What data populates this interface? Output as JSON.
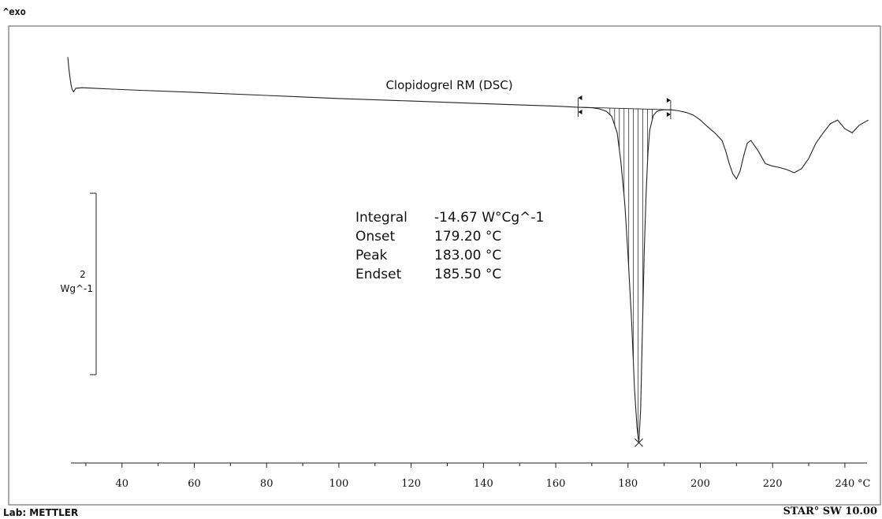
{
  "header": {
    "exo_label": "^exo"
  },
  "footer": {
    "lab_label": "Lab: METTLER",
    "software_label": "STAR° SW 10.00"
  },
  "chart_data": {
    "type": "line",
    "title": "Clopidogrel RM (DSC)",
    "xlabel": "",
    "ylabel": "",
    "x_unit": "°C",
    "xlim": [
      25,
      247
    ],
    "x_ticks": [
      40,
      60,
      80,
      100,
      120,
      140,
      160,
      180,
      200,
      220,
      240
    ],
    "x_tick_labels": [
      "40",
      "60",
      "80",
      "100",
      "120",
      "140",
      "160",
      "180",
      "200",
      "220",
      "240"
    ],
    "scale_bar": {
      "top_label": "2",
      "unit_label": "Wg^-1",
      "value": 2
    },
    "ylim": [
      -7.0,
      0.9
    ],
    "integration": {
      "start": 166.2,
      "end": 191.8
    },
    "annotations": [
      {
        "name": "Integral",
        "value": "-14.67 W°Cg^-1"
      },
      {
        "name": "Onset",
        "value": "179.20 °C"
      },
      {
        "name": "Peak",
        "value": "183.00 °C"
      },
      {
        "name": "Endset",
        "value": "185.50 °C"
      }
    ],
    "series": [
      {
        "x": [
          25.0,
          25.3,
          25.6,
          25.9,
          26.2,
          26.6,
          27.2,
          29.0,
          35,
          45,
          60,
          80,
          100,
          120,
          140,
          160,
          166,
          170,
          172,
          174,
          175.5,
          177,
          178,
          179,
          179.2,
          180,
          181,
          181.8,
          182.5,
          183.0,
          183.5,
          184.0,
          184.5,
          185.0,
          185.5,
          186,
          187,
          188,
          189,
          190,
          191,
          192,
          194,
          196,
          198,
          200,
          202,
          204,
          206,
          207,
          208,
          209,
          210,
          211,
          212,
          213,
          214,
          216,
          218,
          220,
          222,
          224,
          226,
          228,
          230,
          232,
          234,
          236,
          238,
          240,
          242,
          244,
          246.5
        ],
        "y": [
          0.68,
          0.45,
          0.28,
          0.14,
          0.05,
          0.0,
          0.07,
          0.08,
          0.06,
          0.03,
          -0.01,
          -0.07,
          -0.13,
          -0.18,
          -0.23,
          -0.28,
          -0.3,
          -0.31,
          -0.33,
          -0.38,
          -0.48,
          -0.8,
          -1.35,
          -2.1,
          -2.28,
          -3.2,
          -4.5,
          -5.8,
          -6.55,
          -6.85,
          -6.2,
          -4.6,
          -3.1,
          -2.0,
          -1.2,
          -0.75,
          -0.46,
          -0.38,
          -0.36,
          -0.35,
          -0.35,
          -0.35,
          -0.37,
          -0.4,
          -0.45,
          -0.55,
          -0.68,
          -0.8,
          -0.95,
          -1.15,
          -1.4,
          -1.6,
          -1.7,
          -1.55,
          -1.25,
          -1.0,
          -0.95,
          -1.15,
          -1.4,
          -1.45,
          -1.48,
          -1.52,
          -1.58,
          -1.5,
          -1.3,
          -1.0,
          -0.8,
          -0.62,
          -0.55,
          -0.72,
          -0.8,
          -0.65,
          -0.55
        ]
      }
    ]
  }
}
